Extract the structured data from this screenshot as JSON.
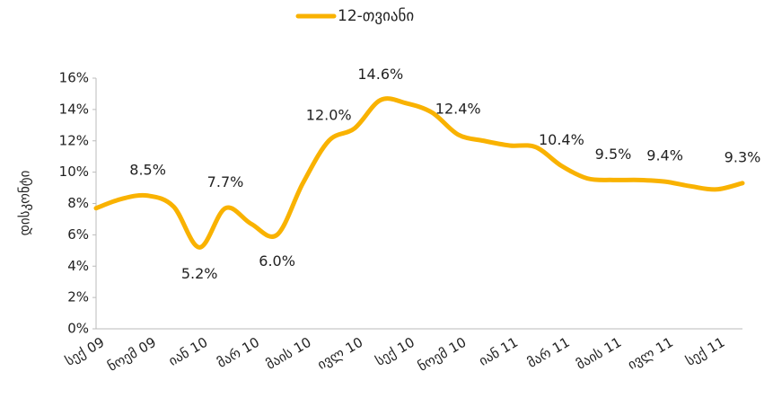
{
  "chart_data": {
    "type": "line",
    "y_label": "დისკონტი",
    "categories": [
      "სექ 09",
      null,
      "ნოემ 09",
      null,
      "იან 10",
      null,
      "მარ 10",
      null,
      "მაის 10",
      null,
      "ივლ 10",
      null,
      "სექ 10",
      null,
      "ნოემ 10",
      null,
      "იან 11",
      null,
      "მარ 11",
      null,
      "მაის 11",
      null,
      "ივლ 11",
      null,
      "სექ 11",
      null
    ],
    "series": [
      {
        "name": "12-თვიანი",
        "color": "#f9b200",
        "values": [
          7.7,
          8.3,
          8.5,
          7.8,
          5.2,
          7.7,
          6.7,
          6.0,
          9.3,
          12.0,
          12.8,
          14.6,
          14.4,
          13.8,
          12.4,
          12.0,
          11.7,
          11.6,
          10.4,
          9.6,
          9.5,
          9.5,
          9.4,
          9.1,
          8.9,
          9.3
        ],
        "value_labels": [
          null,
          null,
          "8.5%",
          null,
          "5.2%",
          "7.7%",
          null,
          "6.0%",
          null,
          "12.0%",
          null,
          "14.6%",
          null,
          null,
          "12.4%",
          null,
          null,
          null,
          "10.4%",
          null,
          "9.5%",
          null,
          "9.4%",
          null,
          null,
          "9.3%"
        ]
      }
    ],
    "ylim": [
      0,
      16
    ],
    "yticks": [
      {
        "value": 0,
        "label": "0%"
      },
      {
        "value": 2,
        "label": "2%"
      },
      {
        "value": 4,
        "label": "4%"
      },
      {
        "value": 6,
        "label": "6%"
      },
      {
        "value": 8,
        "label": "8%"
      },
      {
        "value": 10,
        "label": "10%"
      },
      {
        "value": 12,
        "label": "12%"
      },
      {
        "value": 14,
        "label": "14%"
      },
      {
        "value": 16,
        "label": "16%"
      }
    ],
    "legend": "top"
  }
}
